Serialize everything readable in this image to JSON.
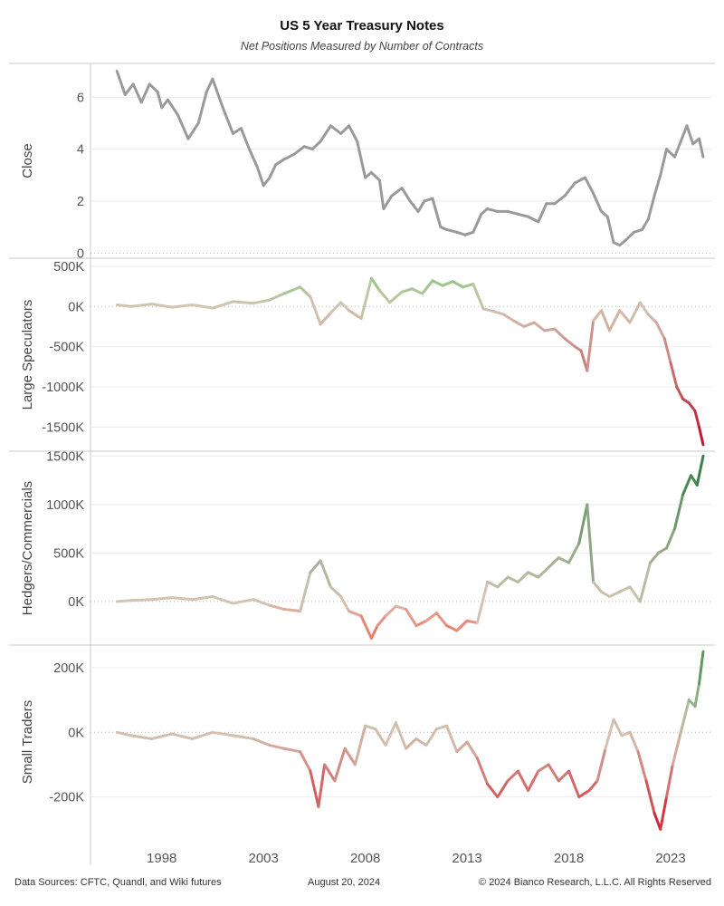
{
  "title": "US 5 Year Treasury Notes",
  "subtitle": "Net Positions Measured by Number of Contracts",
  "footer": {
    "source": "Data Sources: CFTC, Quandl, and Wiki futures",
    "date": "August 20, 2024",
    "copyright": "© 2024 Bianco Research, L.L.C. All Rights Reserved"
  },
  "chart_data": [
    {
      "type": "line",
      "ylabel": "Close",
      "ylim": [
        -0.2,
        7.3
      ],
      "yticks": [
        0,
        2,
        4,
        6
      ],
      "ytick_labels": [
        "0",
        "2",
        "4",
        "6"
      ],
      "color": "#9a9a9a",
      "x": [
        1995.8,
        1996.2,
        1996.6,
        1997.0,
        1997.4,
        1997.8,
        1998.0,
        1998.3,
        1998.8,
        1999.3,
        1999.8,
        2000.2,
        2000.5,
        2001.0,
        2001.5,
        2001.9,
        2002.3,
        2002.7,
        2003.0,
        2003.3,
        2003.6,
        2004.0,
        2004.5,
        2005.0,
        2005.4,
        2005.8,
        2006.3,
        2006.8,
        2007.2,
        2007.6,
        2008.0,
        2008.3,
        2008.7,
        2008.9,
        2009.3,
        2009.8,
        2010.2,
        2010.6,
        2010.9,
        2011.3,
        2011.7,
        2012.0,
        2012.5,
        2012.9,
        2013.3,
        2013.7,
        2014.0,
        2014.5,
        2015.0,
        2015.5,
        2016.0,
        2016.5,
        2016.9,
        2017.3,
        2017.8,
        2018.3,
        2018.8,
        2019.2,
        2019.6,
        2019.9,
        2020.2,
        2020.5,
        2020.8,
        2021.2,
        2021.6,
        2021.9,
        2022.2,
        2022.5,
        2022.8,
        2023.2,
        2023.5,
        2023.8,
        2024.1,
        2024.4,
        2024.6
      ],
      "values": [
        7.0,
        6.1,
        6.5,
        5.8,
        6.5,
        6.2,
        5.6,
        5.9,
        5.3,
        4.4,
        5.0,
        6.2,
        6.7,
        5.6,
        4.6,
        4.8,
        4.0,
        3.3,
        2.6,
        2.9,
        3.4,
        3.6,
        3.8,
        4.1,
        4.0,
        4.3,
        4.9,
        4.6,
        4.9,
        4.3,
        2.9,
        3.1,
        2.8,
        1.7,
        2.2,
        2.5,
        2.0,
        1.6,
        2.0,
        2.1,
        1.0,
        0.9,
        0.8,
        0.7,
        0.8,
        1.5,
        1.7,
        1.6,
        1.6,
        1.5,
        1.4,
        1.2,
        1.9,
        1.9,
        2.2,
        2.7,
        2.9,
        2.3,
        1.6,
        1.4,
        0.4,
        0.3,
        0.5,
        0.8,
        0.9,
        1.3,
        2.2,
        3.0,
        4.0,
        3.7,
        4.3,
        4.9,
        4.2,
        4.4,
        3.7
      ]
    },
    {
      "type": "line",
      "ylabel": "Large Speculators",
      "ylim": [
        -1800000,
        600000
      ],
      "yticks": [
        500000,
        0,
        -500000,
        -1000000,
        -1500000
      ],
      "ytick_labels": [
        "500K",
        "0K",
        "-500K",
        "-1000K",
        "-1500K"
      ],
      "color_scale": {
        "low": "#c0122b",
        "mid": "#d3c5b3",
        "high": "#86c77a"
      },
      "scale_range": [
        -1700000,
        400000
      ],
      "x": [
        1995.8,
        1996.5,
        1997.5,
        1998.5,
        1999.5,
        2000.5,
        2001.5,
        2002.5,
        2003.3,
        2004.0,
        2004.8,
        2005.3,
        2005.8,
        2006.3,
        2006.8,
        2007.2,
        2007.8,
        2008.3,
        2008.7,
        2009.2,
        2009.8,
        2010.3,
        2010.8,
        2011.3,
        2011.8,
        2012.3,
        2012.8,
        2013.3,
        2013.8,
        2014.3,
        2014.8,
        2015.3,
        2015.8,
        2016.3,
        2016.8,
        2017.3,
        2017.8,
        2018.3,
        2018.6,
        2018.9,
        2019.2,
        2019.6,
        2020.0,
        2020.5,
        2021.0,
        2021.5,
        2021.9,
        2022.3,
        2022.7,
        2023.0,
        2023.3,
        2023.6,
        2023.9,
        2024.2,
        2024.4,
        2024.6
      ],
      "values": [
        20000,
        0,
        30000,
        -10000,
        20000,
        -20000,
        60000,
        40000,
        80000,
        160000,
        240000,
        120000,
        -220000,
        -80000,
        50000,
        -50000,
        -150000,
        350000,
        200000,
        50000,
        180000,
        220000,
        160000,
        320000,
        260000,
        310000,
        240000,
        280000,
        -30000,
        -60000,
        -100000,
        -180000,
        -250000,
        -200000,
        -300000,
        -280000,
        -400000,
        -500000,
        -550000,
        -800000,
        -180000,
        -50000,
        -300000,
        -50000,
        -200000,
        50000,
        -100000,
        -200000,
        -400000,
        -700000,
        -1000000,
        -1150000,
        -1200000,
        -1300000,
        -1500000,
        -1720000
      ]
    },
    {
      "type": "line",
      "ylabel": "Hedgers/Commercials",
      "ylim": [
        -450000,
        1550000
      ],
      "yticks": [
        1500000,
        1000000,
        500000,
        0
      ],
      "ytick_labels": [
        "1500K",
        "1000K",
        "500K",
        "0K"
      ],
      "color_scale": {
        "low": "#ef7b6b",
        "mid": "#d3c5b3",
        "high": "#2a7a3e"
      },
      "scale_range": [
        -300000,
        1500000
      ],
      "x": [
        1995.8,
        1996.5,
        1997.5,
        1998.5,
        1999.5,
        2000.5,
        2001.5,
        2002.5,
        2003.3,
        2004.0,
        2004.8,
        2005.3,
        2005.8,
        2006.3,
        2006.8,
        2007.2,
        2007.8,
        2008.3,
        2008.6,
        2009.0,
        2009.5,
        2010.0,
        2010.5,
        2011.0,
        2011.5,
        2012.0,
        2012.5,
        2013.0,
        2013.5,
        2014.0,
        2014.5,
        2015.0,
        2015.5,
        2016.0,
        2016.5,
        2017.0,
        2017.5,
        2018.0,
        2018.5,
        2018.9,
        2019.2,
        2019.6,
        2020.0,
        2020.5,
        2021.0,
        2021.5,
        2022.0,
        2022.4,
        2022.8,
        2023.2,
        2023.6,
        2024.0,
        2024.3,
        2024.6
      ],
      "values": [
        0,
        10000,
        20000,
        40000,
        20000,
        50000,
        -20000,
        20000,
        -40000,
        -80000,
        -100000,
        300000,
        420000,
        150000,
        50000,
        -100000,
        -150000,
        -380000,
        -250000,
        -150000,
        -50000,
        -80000,
        -250000,
        -200000,
        -120000,
        -250000,
        -300000,
        -200000,
        -220000,
        200000,
        150000,
        250000,
        200000,
        300000,
        250000,
        350000,
        450000,
        400000,
        600000,
        1000000,
        200000,
        100000,
        50000,
        100000,
        150000,
        0,
        400000,
        500000,
        550000,
        750000,
        1100000,
        1300000,
        1200000,
        1500000
      ]
    },
    {
      "type": "line",
      "ylabel": "Small Traders",
      "ylim": [
        -330000,
        270000
      ],
      "yticks": [
        200000,
        0,
        -200000
      ],
      "ytick_labels": [
        "200K",
        "0K",
        "-200K"
      ],
      "color_scale": {
        "low": "#d01c2b",
        "mid": "#d3c5b3",
        "high": "#3c8d46"
      },
      "scale_range": [
        -300000,
        260000
      ],
      "x": [
        1995.8,
        1996.5,
        1997.5,
        1998.5,
        1999.5,
        2000.5,
        2001.5,
        2002.5,
        2003.3,
        2004.0,
        2004.8,
        2005.3,
        2005.7,
        2006.0,
        2006.5,
        2007.0,
        2007.5,
        2008.0,
        2008.5,
        2009.0,
        2009.5,
        2010.0,
        2010.5,
        2011.0,
        2011.5,
        2012.0,
        2012.5,
        2013.0,
        2013.5,
        2014.0,
        2014.5,
        2015.0,
        2015.5,
        2016.0,
        2016.5,
        2017.0,
        2017.5,
        2018.0,
        2018.5,
        2019.0,
        2019.4,
        2019.8,
        2020.2,
        2020.6,
        2021.0,
        2021.4,
        2021.8,
        2022.2,
        2022.5,
        2022.8,
        2023.1,
        2023.5,
        2023.9,
        2024.2,
        2024.4,
        2024.6
      ],
      "values": [
        0,
        -10000,
        -20000,
        -5000,
        -20000,
        0,
        -10000,
        -20000,
        -40000,
        -50000,
        -60000,
        -120000,
        -230000,
        -100000,
        -150000,
        -50000,
        -100000,
        20000,
        10000,
        -40000,
        30000,
        -50000,
        -20000,
        -40000,
        10000,
        20000,
        -60000,
        -30000,
        -80000,
        -160000,
        -200000,
        -150000,
        -120000,
        -180000,
        -120000,
        -100000,
        -150000,
        -120000,
        -200000,
        -180000,
        -150000,
        -50000,
        40000,
        -10000,
        0,
        -60000,
        -150000,
        -250000,
        -300000,
        -200000,
        -100000,
        0,
        100000,
        80000,
        150000,
        250000
      ]
    }
  ],
  "x_axis": {
    "ticks": [
      1998,
      2003,
      2008,
      2013,
      2018,
      2023
    ],
    "labels": [
      "1998",
      "2003",
      "2008",
      "2013",
      "2018",
      "2023"
    ],
    "xlim": [
      1994.5,
      2025.0
    ]
  }
}
